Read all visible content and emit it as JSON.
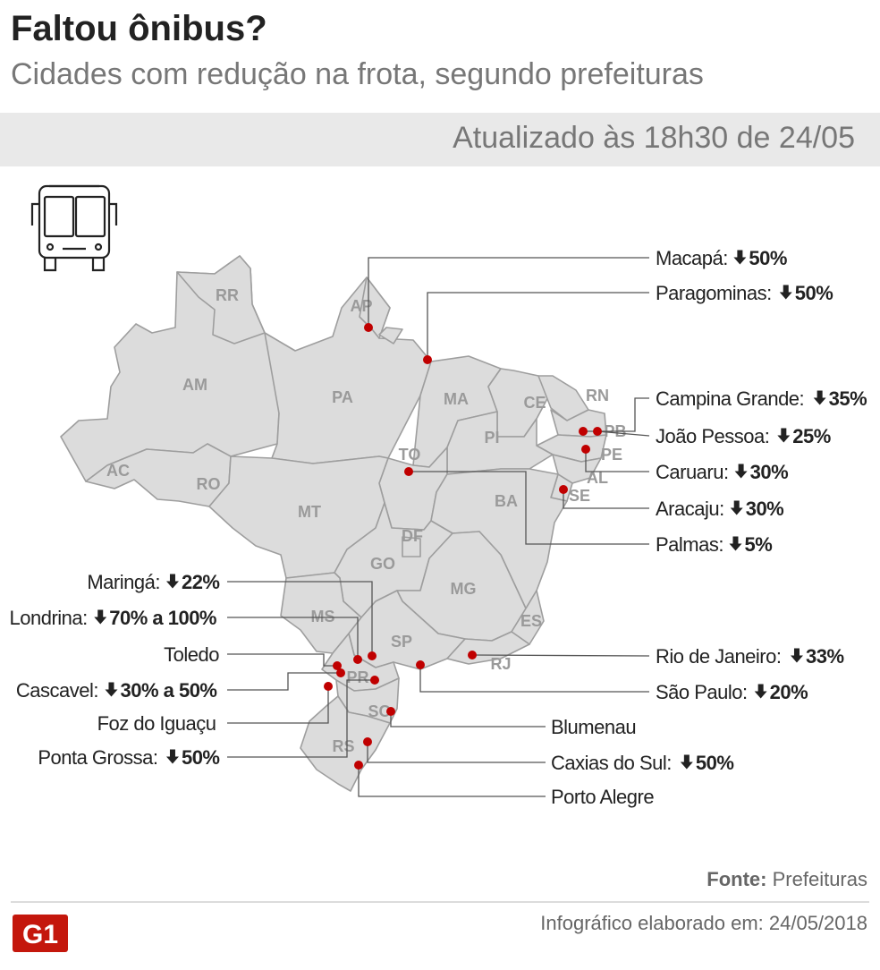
{
  "header": {
    "title": "Faltou ônibus?",
    "subtitle": "Cidades com redução na frota, segundo prefeituras",
    "updated": "Atualizado às 18h30 de 24/05"
  },
  "colors": {
    "map_fill": "#dcdcdc",
    "border": "#9e9e9e",
    "marker": "#c00000",
    "brand": "#c4170c"
  },
  "icons": {
    "bus": "bus-icon",
    "arrow": "arrow-down-icon",
    "logo": "g1-logo"
  },
  "states": [
    "RR",
    "AP",
    "AM",
    "PA",
    "MA",
    "CE",
    "RN",
    "PB",
    "PE",
    "AL",
    "SE",
    "PI",
    "TO",
    "BA",
    "AC",
    "RO",
    "MT",
    "DF",
    "GO",
    "MG",
    "ES",
    "MS",
    "SP",
    "RJ",
    "PR",
    "SC",
    "RS"
  ],
  "cities": [
    {
      "name": "Macapá:",
      "value": "50%"
    },
    {
      "name": "Paragominas:",
      "value": "50%"
    },
    {
      "name": "Campina Grande:",
      "value": "35%"
    },
    {
      "name": "João Pessoa:",
      "value": "25%"
    },
    {
      "name": "Caruaru:",
      "value": "30%"
    },
    {
      "name": "Aracaju:",
      "value": "30%"
    },
    {
      "name": "Palmas:",
      "value": "5%"
    },
    {
      "name": "Maringá:",
      "value": "22%"
    },
    {
      "name": "Londrina:",
      "value": "70% a 100%"
    },
    {
      "name": "Toledo",
      "value": ""
    },
    {
      "name": "Cascavel:",
      "value": "30% a 50%"
    },
    {
      "name": "Foz do Iguaçu",
      "value": ""
    },
    {
      "name": "Ponta Grossa:",
      "value": "50%"
    },
    {
      "name": "Rio de Janeiro:",
      "value": "33%"
    },
    {
      "name": "São Paulo:",
      "value": "20%"
    },
    {
      "name": "Blumenau",
      "value": ""
    },
    {
      "name": "Caxias do Sul:",
      "value": "50%"
    },
    {
      "name": "Porto Alegre",
      "value": ""
    }
  ],
  "footer": {
    "source_label": "Fonte:",
    "source": "Prefeituras",
    "made": "Infográfico elaborado em: 24/05/2018",
    "logo_text": "G1"
  }
}
